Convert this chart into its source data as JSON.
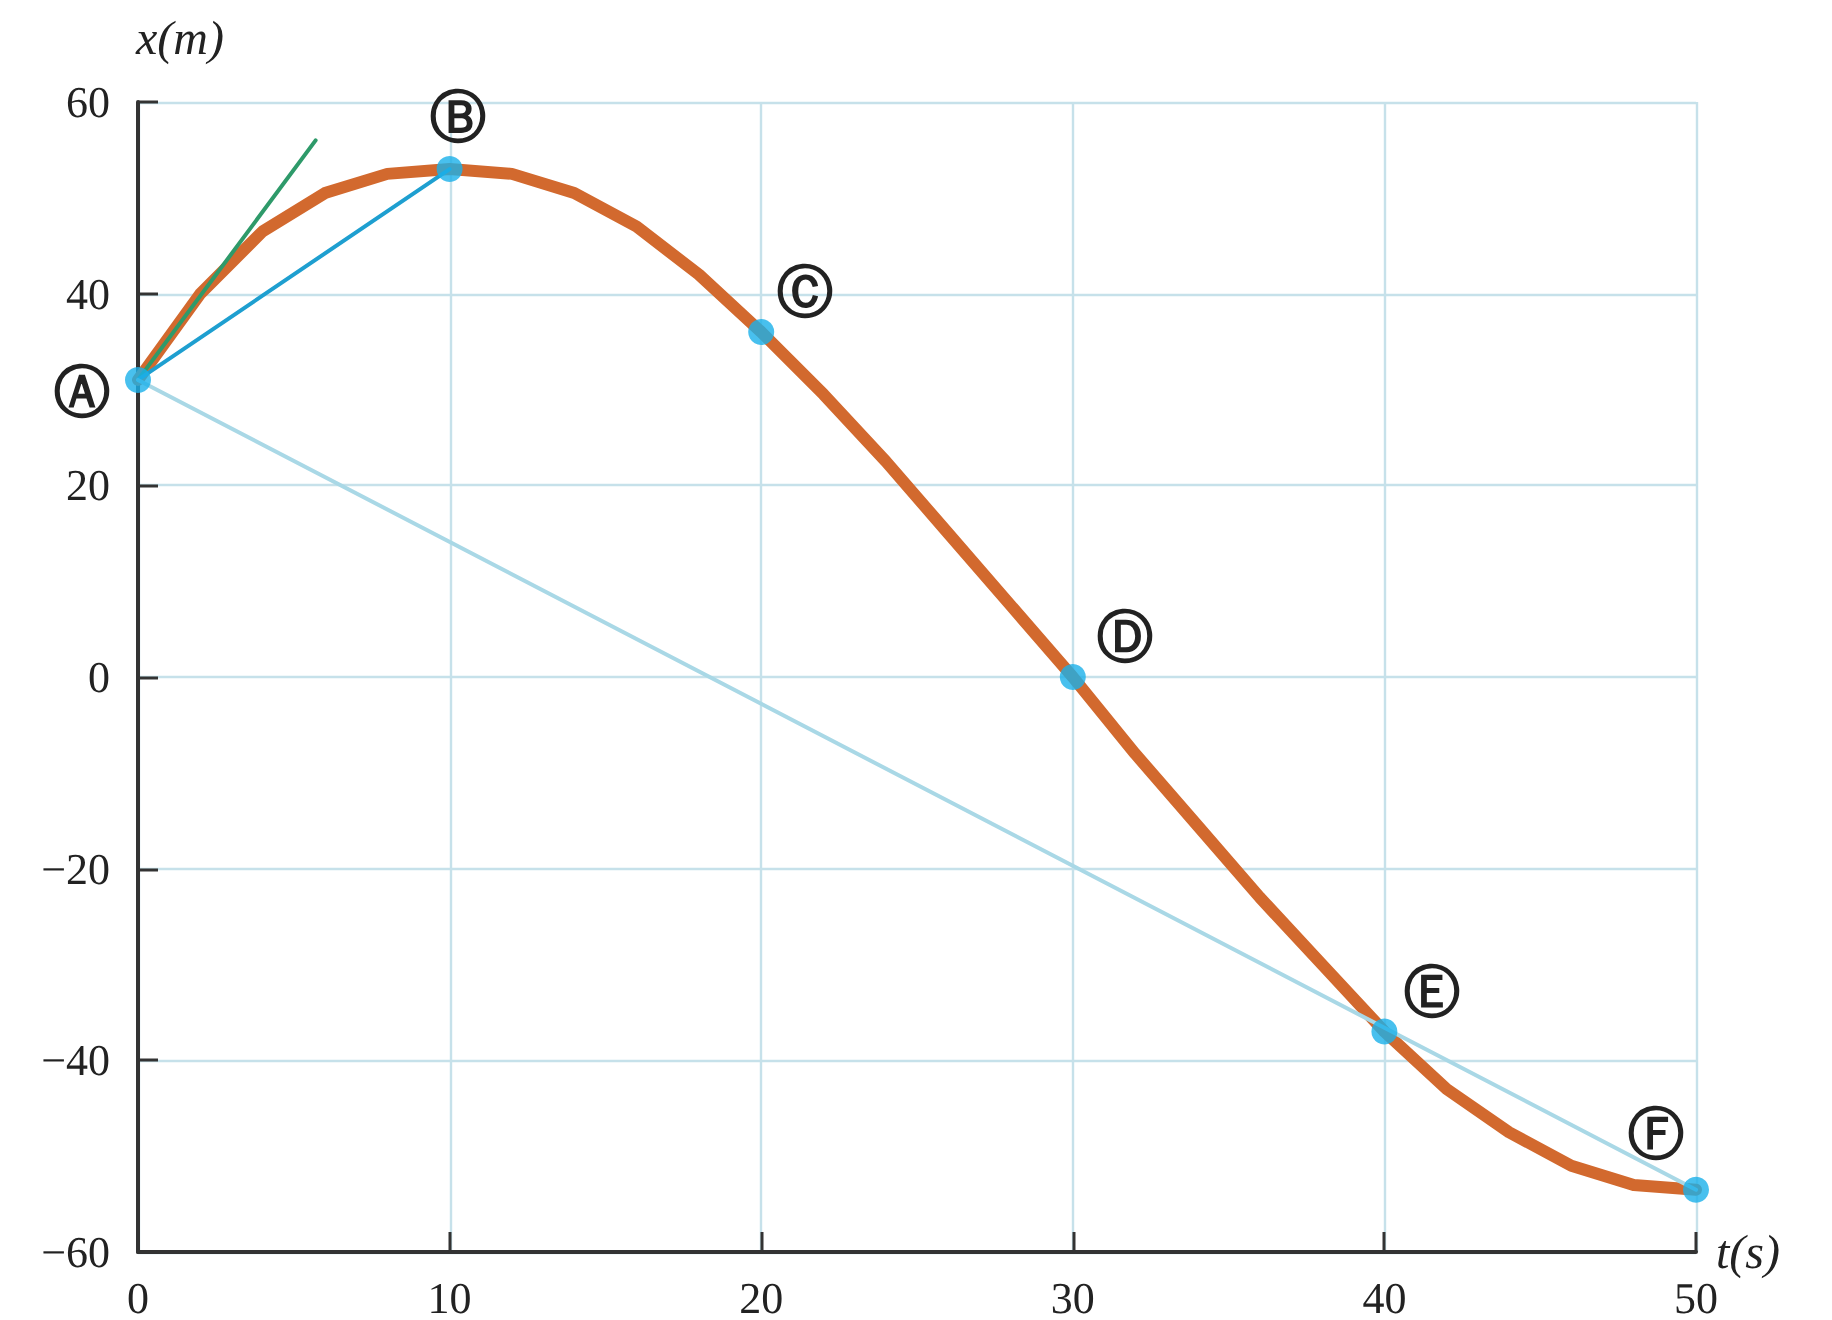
{
  "chart_data": {
    "type": "line",
    "xlabel": "t(s)",
    "ylabel": "x(m)",
    "xlim": [
      0,
      50
    ],
    "xticks": [
      0,
      10,
      20,
      30,
      40,
      50
    ],
    "ylim": [
      -60,
      60
    ],
    "yticks": [
      -60,
      -40,
      -20,
      0,
      20,
      40,
      60
    ],
    "grid": true,
    "series": [
      {
        "color": "#d2692e",
        "marker": "none",
        "x": [
          0,
          2,
          4,
          6,
          8,
          10,
          12,
          14,
          16,
          18,
          20,
          22,
          24,
          26,
          28,
          30,
          32,
          34,
          36,
          38,
          40,
          42,
          44,
          46,
          48,
          50
        ],
        "values": [
          31,
          40,
          46.5,
          50.5,
          52.5,
          53,
          52.5,
          50.5,
          47,
          42,
          36,
          29.5,
          22.5,
          15,
          7.5,
          0,
          -8,
          -15.5,
          -23,
          -30,
          -37,
          -43,
          -47.5,
          -51,
          -53,
          -53.5
        ]
      },
      {
        "color": "#2e9a6a",
        "marker": "none",
        "x": [
          0,
          5.7
        ],
        "values": [
          31,
          56
        ]
      },
      {
        "color": "#1e9fd0",
        "marker": "none",
        "x": [
          0,
          10
        ],
        "values": [
          31,
          53
        ]
      },
      {
        "color": "#a9d8e6",
        "marker": "none",
        "x": [
          0,
          50
        ],
        "values": [
          31,
          -53.5
        ]
      },
      {
        "type": "scatter",
        "color": "#1ab0ea",
        "marker": "circle",
        "x": [
          0,
          10,
          20,
          30,
          40,
          50
        ],
        "values": [
          31,
          53,
          36,
          0,
          -37,
          -53.5
        ]
      }
    ],
    "annotations": [
      {
        "text": "Ⓐ",
        "x": 0,
        "y": 31
      },
      {
        "text": "Ⓑ",
        "x": 10,
        "y": 53
      },
      {
        "text": "Ⓒ",
        "x": 20,
        "y": 36
      },
      {
        "text": "Ⓓ",
        "x": 30,
        "y": 0
      },
      {
        "text": "Ⓔ",
        "x": 40,
        "y": -37
      },
      {
        "text": "Ⓕ",
        "x": 50,
        "y": -53.5
      }
    ]
  }
}
